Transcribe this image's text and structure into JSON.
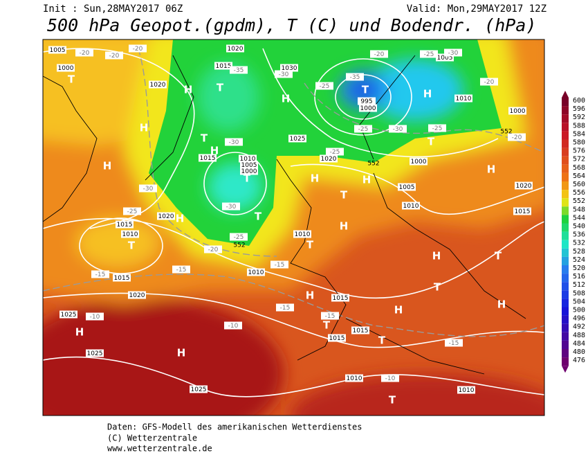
{
  "header": {
    "init": "Init : Sun,28MAY2017 06Z",
    "valid": "Valid: Mon,29MAY2017 12Z",
    "title": "500 hPa Geopot.(gpdm), T (C) und Bodendr. (hPa)"
  },
  "legend": {
    "levels": [
      600,
      596,
      592,
      588,
      584,
      580,
      576,
      572,
      568,
      564,
      560,
      556,
      552,
      548,
      544,
      540,
      536,
      532,
      528,
      524,
      520,
      516,
      512,
      508,
      504,
      500,
      496,
      492,
      488,
      484,
      480,
      476
    ]
  },
  "map": {
    "pressure_centers": [
      "T",
      "H",
      "H",
      "T",
      "H",
      "H",
      "T",
      "H",
      "T",
      "H",
      "T",
      "T",
      "H",
      "T",
      "H",
      "T",
      "H",
      "T",
      "H",
      "T",
      "H",
      "H",
      "H",
      "T",
      "T",
      "H",
      "H",
      "H",
      "T",
      "T",
      "T",
      "H"
    ],
    "isobar_labels": [
      1005,
      1000,
      1020,
      1015,
      1020,
      1030,
      1025,
      1020,
      1000,
      1005,
      1010,
      1020,
      1015,
      1010,
      1000,
      1005,
      1015,
      1010,
      1005,
      1000,
      1020,
      1015,
      1010,
      1015,
      1020,
      1010,
      1010,
      1015,
      1015,
      1015,
      1025,
      1025,
      1025,
      1010,
      1010,
      1000,
      995
    ],
    "temperature_labels": [
      -20,
      -20,
      -20,
      -30,
      -25,
      -20,
      -15,
      -15,
      -15,
      -15,
      -15,
      -10,
      -10,
      -10,
      -15,
      -35,
      -30,
      -30,
      -30,
      -25,
      -25,
      -25,
      -25,
      -30,
      -25,
      -20,
      -20,
      -25,
      -30,
      -20,
      -35
    ],
    "thickness_labels": [
      552,
      552,
      552
    ]
  },
  "footer": {
    "line1": "Daten: GFS-Modell des amerikanischen Wetterdienstes",
    "line2": "(C) Wetterzentrale",
    "line3": "www.wetterzentrale.de"
  }
}
